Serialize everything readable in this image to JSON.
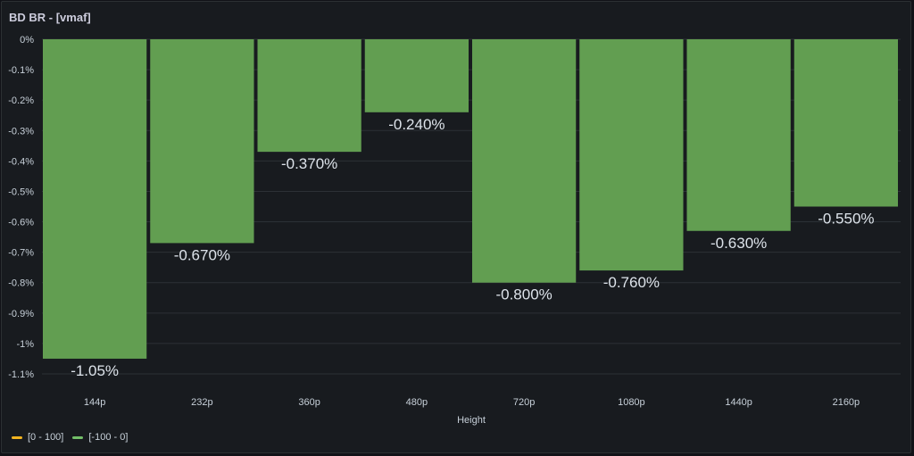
{
  "panel": {
    "title": "BD BR - [vmaf]"
  },
  "chart_data": {
    "type": "bar",
    "title": "BD BR - [vmaf]",
    "xlabel": "Height",
    "ylabel": "",
    "categories": [
      "144p",
      "232p",
      "360p",
      "480p",
      "720p",
      "1080p",
      "1440p",
      "2160p"
    ],
    "values": [
      -1.05,
      -0.67,
      -0.37,
      -0.24,
      -0.8,
      -0.76,
      -0.63,
      -0.55
    ],
    "value_labels": [
      "-1.05%",
      "-0.670%",
      "-0.370%",
      "-0.240%",
      "-0.800%",
      "-0.760%",
      "-0.630%",
      "-0.550%"
    ],
    "ylim": [
      -1.1,
      0
    ],
    "yticks": [
      0,
      -0.1,
      -0.2,
      -0.3,
      -0.4,
      -0.5,
      -0.6,
      -0.7,
      -0.8,
      -0.9,
      -1.0,
      -1.1
    ],
    "ytick_labels": [
      "0%",
      "-0.1%",
      "-0.2%",
      "-0.3%",
      "-0.4%",
      "-0.5%",
      "-0.6%",
      "-0.7%",
      "-0.8%",
      "-0.9%",
      "-1%",
      "-1.1%"
    ],
    "grid": true,
    "bar_color": "#629e51",
    "legend_position": "bottom-left"
  },
  "legend": [
    {
      "label": "[0 - 100]",
      "color": "#f2b420"
    },
    {
      "label": "[-100 - 0]",
      "color": "#73bf69"
    }
  ]
}
